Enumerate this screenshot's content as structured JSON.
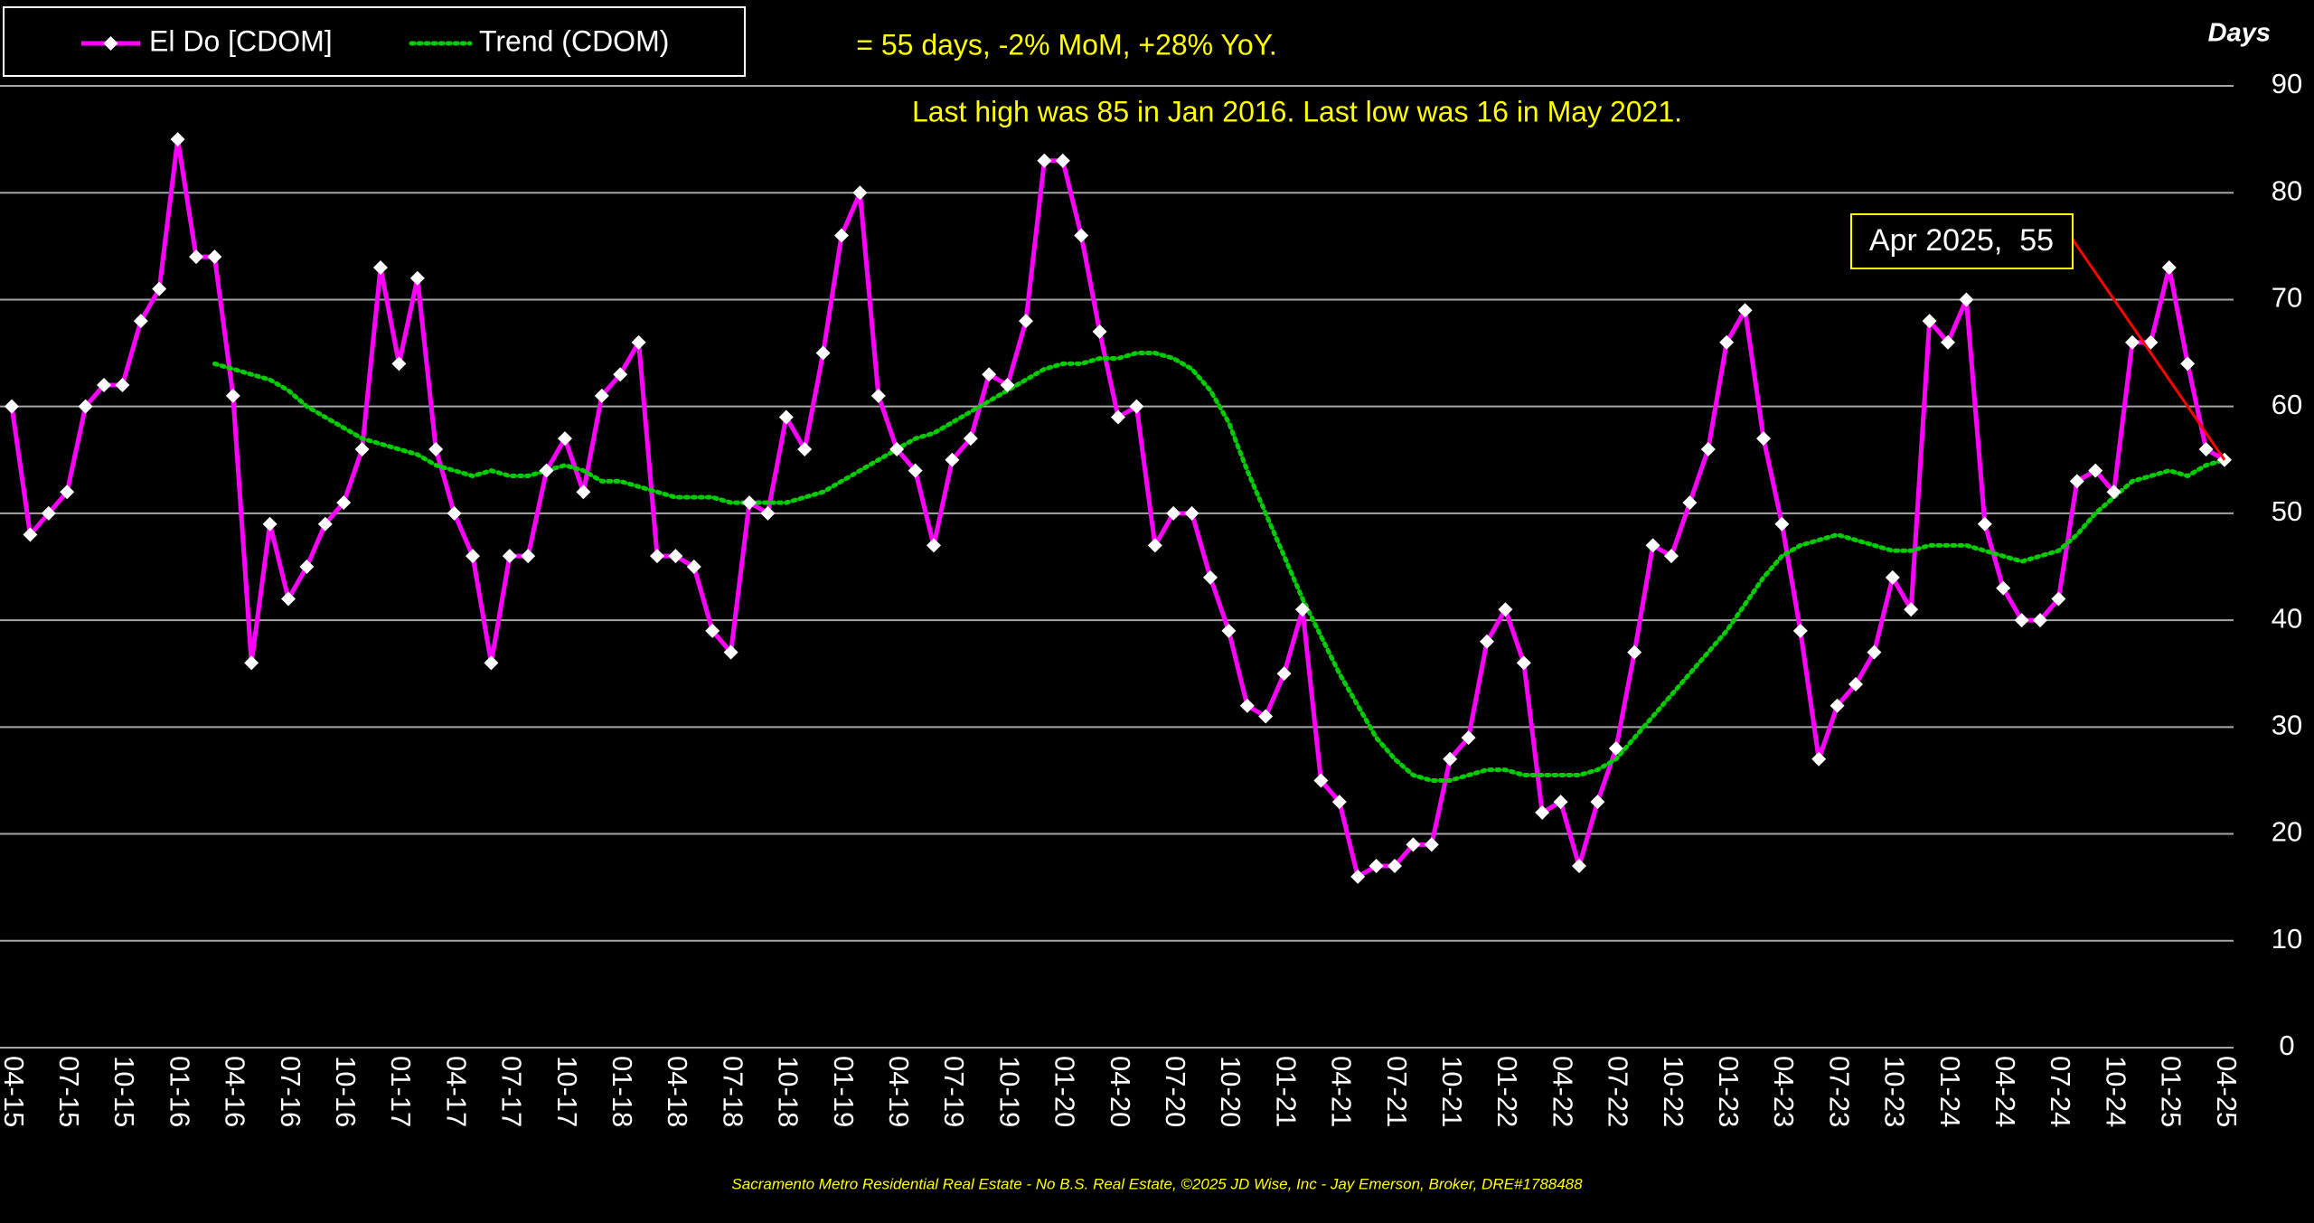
{
  "chart_data": {
    "type": "line",
    "subtitle": "= 55 days, -2% MoM, +28% YoY.",
    "title": "Last high was 85 in Jan 2016. Last low was 16 in May 2021.",
    "y_label": "Days",
    "annotation": "Apr 2025,  55",
    "footer": "Sacramento Metro Residential Real Estate - No B.S. Real Estate, ©2025 JD Wise, Inc - Jay Emerson, Broker, DRE#1788488",
    "categories": [
      "04-15",
      null,
      null,
      "07-15",
      null,
      null,
      "10-15",
      null,
      null,
      "01-16",
      null,
      null,
      "04-16",
      null,
      null,
      "07-16",
      null,
      null,
      "10-16",
      null,
      null,
      "01-17",
      null,
      null,
      "04-17",
      null,
      null,
      "07-17",
      null,
      null,
      "10-17",
      null,
      null,
      "01-18",
      null,
      null,
      "04-18",
      null,
      null,
      "07-18",
      null,
      null,
      "10-18",
      null,
      null,
      "01-19",
      null,
      null,
      "04-19",
      null,
      null,
      "07-19",
      null,
      null,
      "10-19",
      null,
      null,
      "01-20",
      null,
      null,
      "04-20",
      null,
      null,
      "07-20",
      null,
      null,
      "10-20",
      null,
      null,
      "01-21",
      null,
      null,
      "04-21",
      null,
      null,
      "07-21",
      null,
      null,
      "10-21",
      null,
      null,
      "01-22",
      null,
      null,
      "04-22",
      null,
      null,
      "07-22",
      null,
      null,
      "10-22",
      null,
      null,
      "01-23",
      null,
      null,
      "04-23",
      null,
      null,
      "07-23",
      null,
      null,
      "10-23",
      null,
      null,
      "01-24",
      null,
      null,
      "04-24",
      null,
      null,
      "07-24",
      null,
      null,
      "10-24",
      null,
      null,
      "01-25",
      null,
      null,
      "04-25"
    ],
    "series": [
      {
        "name": "El Do [CDOM]",
        "color": "#ff00ff",
        "values": [
          60,
          48,
          50,
          52,
          60,
          62,
          62,
          68,
          71,
          85,
          74,
          74,
          61,
          36,
          49,
          42,
          45,
          49,
          51,
          56,
          73,
          64,
          72,
          56,
          50,
          46,
          36,
          46,
          46,
          54,
          57,
          52,
          61,
          63,
          66,
          46,
          46,
          45,
          39,
          37,
          51,
          50,
          59,
          56,
          65,
          76,
          80,
          61,
          56,
          54,
          47,
          55,
          57,
          63,
          62,
          68,
          83,
          83,
          76,
          67,
          59,
          60,
          47,
          50,
          50,
          44,
          39,
          32,
          31,
          35,
          41,
          25,
          23,
          16,
          17,
          17,
          19,
          19,
          27,
          29,
          38,
          41,
          36,
          22,
          23,
          17,
          23,
          28,
          37,
          47,
          46,
          51,
          56,
          66,
          69,
          57,
          49,
          39,
          27,
          32,
          34,
          37,
          44,
          41,
          68,
          66,
          70,
          49,
          43,
          40,
          40,
          42,
          53,
          54,
          52,
          66,
          66,
          73,
          64,
          56,
          55
        ]
      },
      {
        "name": "Trend (CDOM)",
        "color": "#00cc00",
        "values": [
          null,
          null,
          null,
          null,
          null,
          null,
          null,
          null,
          null,
          null,
          null,
          64,
          63.5,
          63,
          62.5,
          61.5,
          60,
          59,
          58,
          57,
          56.5,
          56,
          55.5,
          54.5,
          54,
          53.5,
          54,
          53.5,
          53.5,
          54,
          54.5,
          54,
          53,
          53,
          52.5,
          52,
          51.5,
          51.5,
          51.5,
          51,
          51,
          51,
          51,
          51.5,
          52,
          53,
          54,
          55,
          56,
          57,
          57.5,
          58.5,
          59.5,
          60.5,
          61.5,
          62.5,
          63.5,
          64,
          64,
          64.5,
          64.5,
          65,
          65,
          64.5,
          63.5,
          61.5,
          58.5,
          54,
          50,
          46,
          42,
          38.5,
          35,
          32,
          29,
          27,
          25.5,
          25,
          25,
          25.5,
          26,
          26,
          25.5,
          25.5,
          25.5,
          25.5,
          26,
          27,
          29,
          31,
          33,
          35,
          37,
          39,
          41.5,
          44,
          46,
          47,
          47.5,
          48,
          47.5,
          47,
          46.5,
          46.5,
          47,
          47,
          47,
          46.5,
          46,
          45.5,
          46,
          46.5,
          48,
          50,
          51.5,
          53,
          53.5,
          54,
          53.5,
          54.5,
          55
        ]
      }
    ],
    "ylim": [
      0,
      90
    ],
    "yticks": [
      0,
      10,
      20,
      30,
      40,
      50,
      60,
      70,
      80,
      90
    ],
    "grid": true
  }
}
